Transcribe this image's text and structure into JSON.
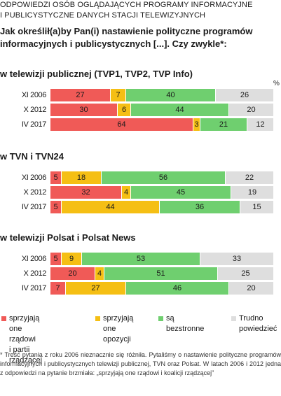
{
  "header": {
    "subhead_line1": "ODPOWIEDZI OSÓB  OGLĄDAJĄCYCH PROGRAMY INFORMACYJNE",
    "subhead_line2": "I PUBLICYSTYCZNE DANYCH STACJI TELEWIZYJNYCH",
    "question_line1": "Jak określił(a)by Pan(i) nastawienie polityczne programów",
    "question_line2": "informacyjnych i publicystycznych [...].  Czy zwykle*:"
  },
  "percent_sign": "%",
  "colors": {
    "government": "#f05a57",
    "opposition": "#f5bf14",
    "neutral": "#6fcf6f",
    "hard_to_say": "#dedede"
  },
  "chart_data": {
    "type": "stacked-bar",
    "orientation": "horizontal",
    "unit": "%",
    "series": [
      {
        "key": "government",
        "name": "sprzyjają one rządowi\ni partii rządzącej"
      },
      {
        "key": "opposition",
        "name": "sprzyjają one\nopozycji"
      },
      {
        "key": "neutral",
        "name": "są bezstronne"
      },
      {
        "key": "hard_to_say",
        "name": "Trudno\npowiedzieć"
      }
    ],
    "groups": [
      {
        "title": "w telewizji publicznej (TVP1, TVP2, TVP Info)",
        "rows": [
          {
            "label": "XI 2006",
            "values": [
              27,
              7,
              40,
              26
            ]
          },
          {
            "label": "X 2012",
            "values": [
              30,
              6,
              44,
              20
            ]
          },
          {
            "label": "IV 2017",
            "values": [
              64,
              3,
              21,
              12
            ]
          }
        ]
      },
      {
        "title": "w TVN i TVN24",
        "rows": [
          {
            "label": "XI 2006",
            "values": [
              5,
              18,
              56,
              22
            ]
          },
          {
            "label": "X 2012",
            "values": [
              32,
              4,
              45,
              19
            ]
          },
          {
            "label": "IV 2017",
            "values": [
              5,
              44,
              36,
              15
            ]
          }
        ]
      },
      {
        "title": "w telewizji Polsat i Polsat News",
        "rows": [
          {
            "label": "XI 2006",
            "values": [
              5,
              9,
              53,
              33
            ]
          },
          {
            "label": "X 2012",
            "values": [
              20,
              4,
              51,
              25
            ]
          },
          {
            "label": "IV 2017",
            "values": [
              7,
              27,
              46,
              20
            ]
          }
        ]
      }
    ],
    "legend_position": "bottom"
  },
  "footnote": "* Treść pytania z roku 2006 nieznacznie się różniła. Pytaliśmy o nastawienie polityczne programów informacyjnych i publicystycznych telewizji publicznej, TVN oraz Polsat. W latach 2006 i 2012 jedna z odpowiedzi na pytanie brzmiała: „sprzyjają one rządowi i koalicji rządzącej”"
}
